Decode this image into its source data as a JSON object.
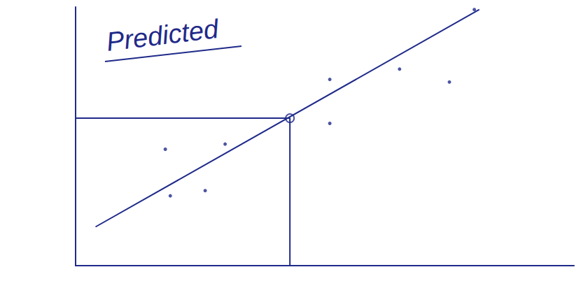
{
  "chart_data": {
    "type": "scatter",
    "annotations": [
      "Predicted"
    ],
    "x": [
      1.8,
      3.0,
      1.9,
      2.6,
      5.1,
      5.1,
      6.5,
      7.5,
      8.0
    ],
    "values": [
      4.5,
      4.7,
      2.7,
      2.9,
      5.5,
      7.2,
      7.6,
      7.1,
      9.9
    ],
    "fit_line": {
      "x": [
        0.4,
        8.1
      ],
      "values": [
        1.5,
        9.9
      ]
    },
    "predicted": {
      "x": 4.3,
      "y": 5.7
    },
    "xlim": [
      0,
      10
    ],
    "ylim": [
      0,
      10
    ],
    "tick_labels": false,
    "grid": false,
    "color": "#1f2a8a",
    "marker": "dot"
  }
}
